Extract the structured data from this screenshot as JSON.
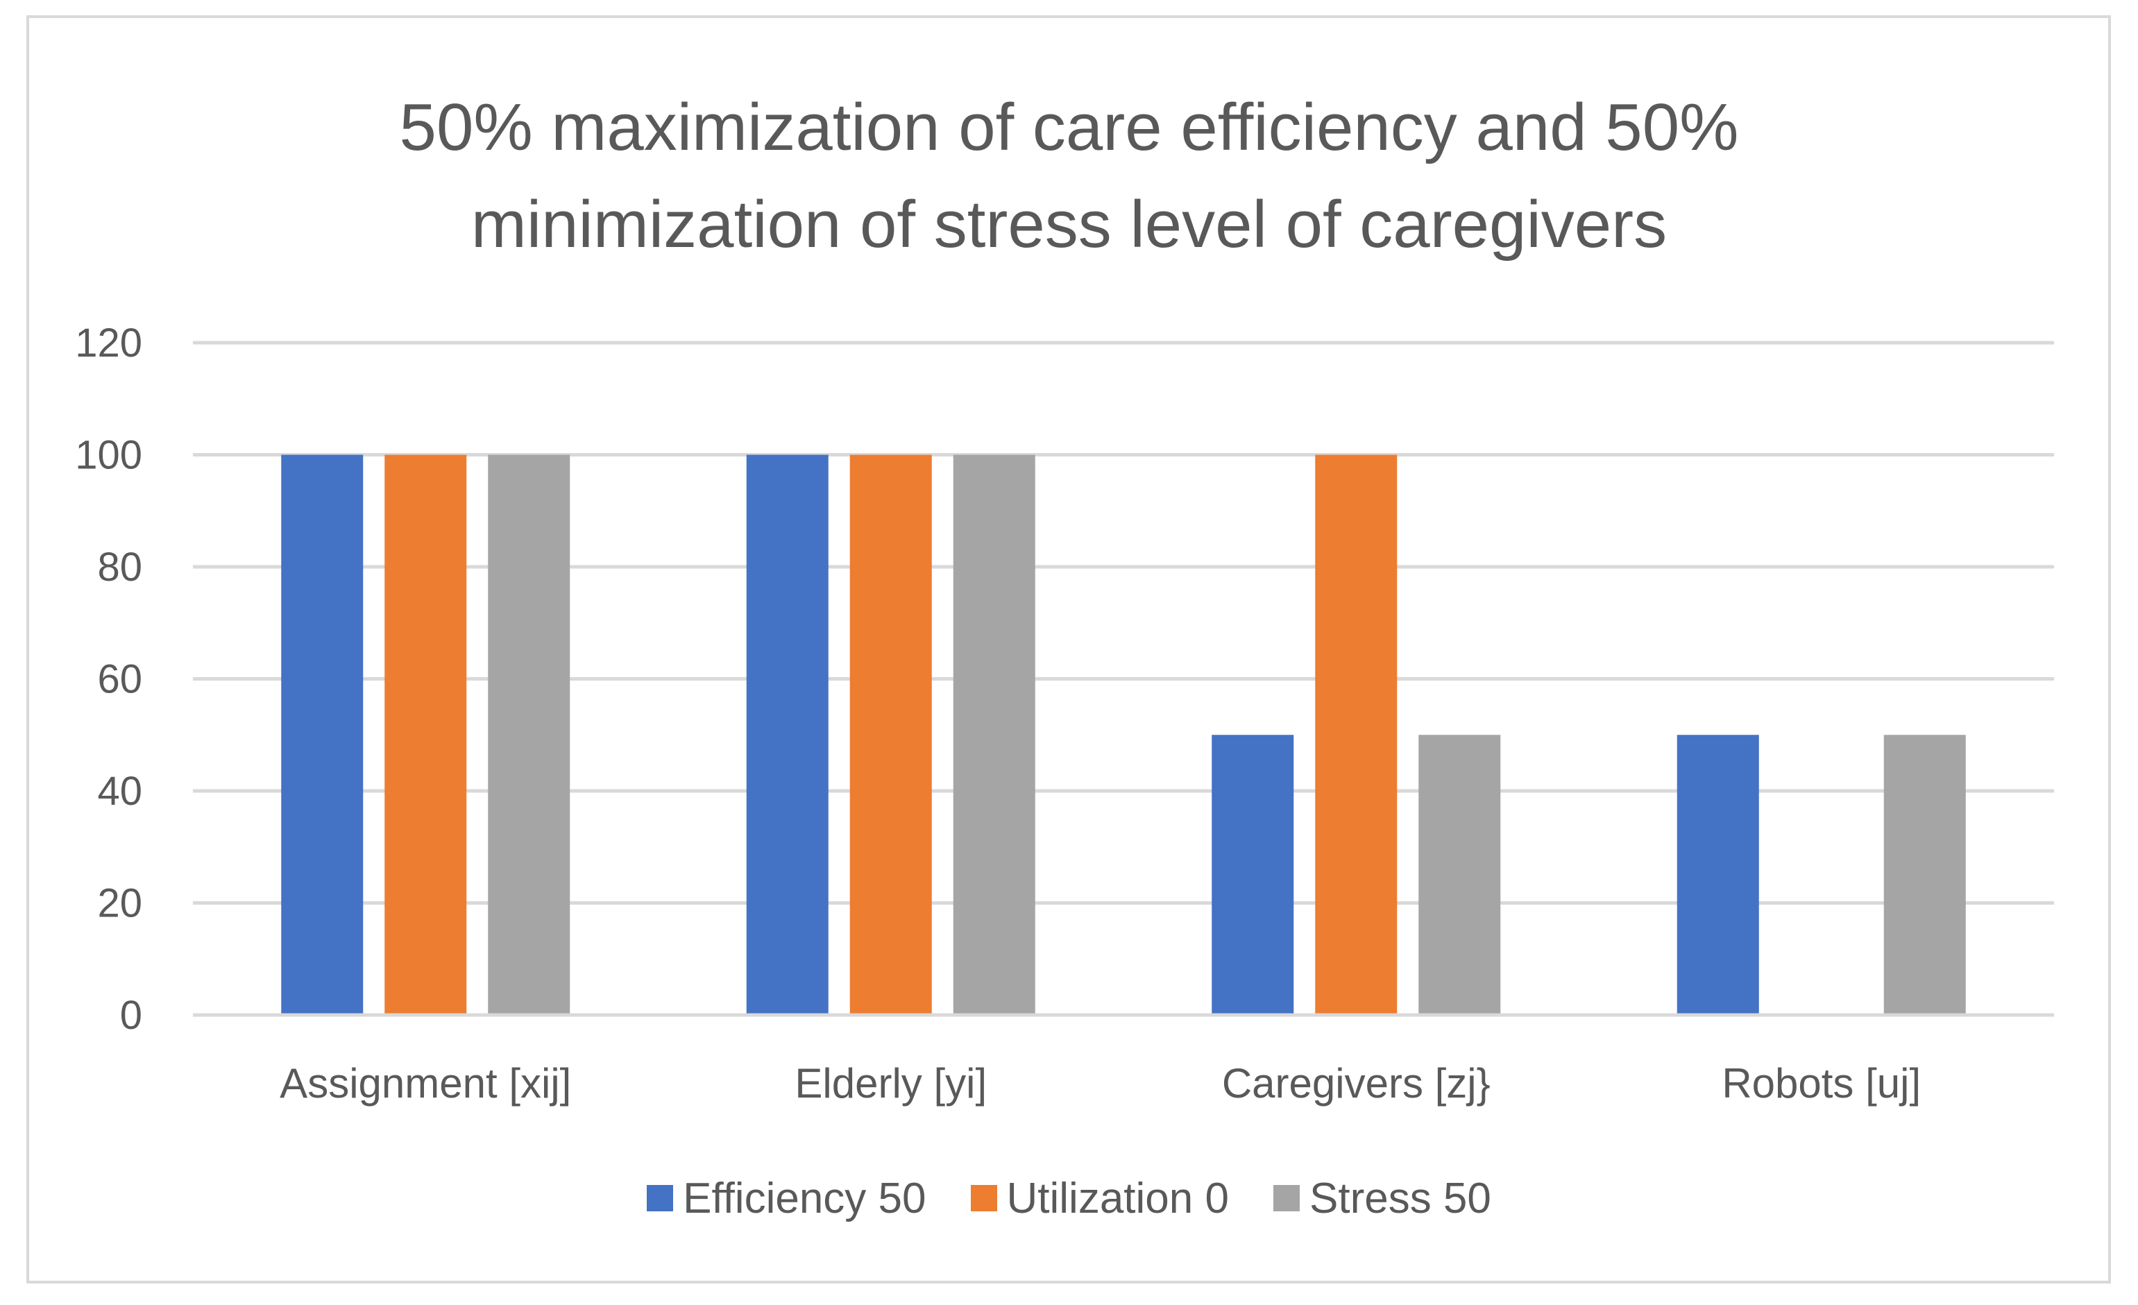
{
  "chart_data": {
    "type": "bar",
    "title": "50% maximization of care efficiency and 50% minimization of stress level of caregivers",
    "title_lines": [
      "50% maximization of care efficiency and 50%",
      "minimization of stress level of caregivers"
    ],
    "categories": [
      "Assignment [xij]",
      "Elderly [yi]",
      "Caregivers [zj}",
      "Robots [uj]"
    ],
    "series": [
      {
        "name": "Efficiency 50",
        "color": "#4472c4",
        "values": [
          100,
          100,
          50,
          50
        ]
      },
      {
        "name": "Utilization 0",
        "color": "#ed7d31",
        "values": [
          100,
          100,
          100,
          0
        ]
      },
      {
        "name": "Stress 50",
        "color": "#a5a5a5",
        "values": [
          100,
          100,
          50,
          50
        ]
      }
    ],
    "ylim": [
      0,
      120
    ],
    "yticks": [
      0,
      20,
      40,
      60,
      80,
      100,
      120
    ],
    "xlabel": "",
    "ylabel": "",
    "grid": true,
    "legend_position": "bottom"
  }
}
